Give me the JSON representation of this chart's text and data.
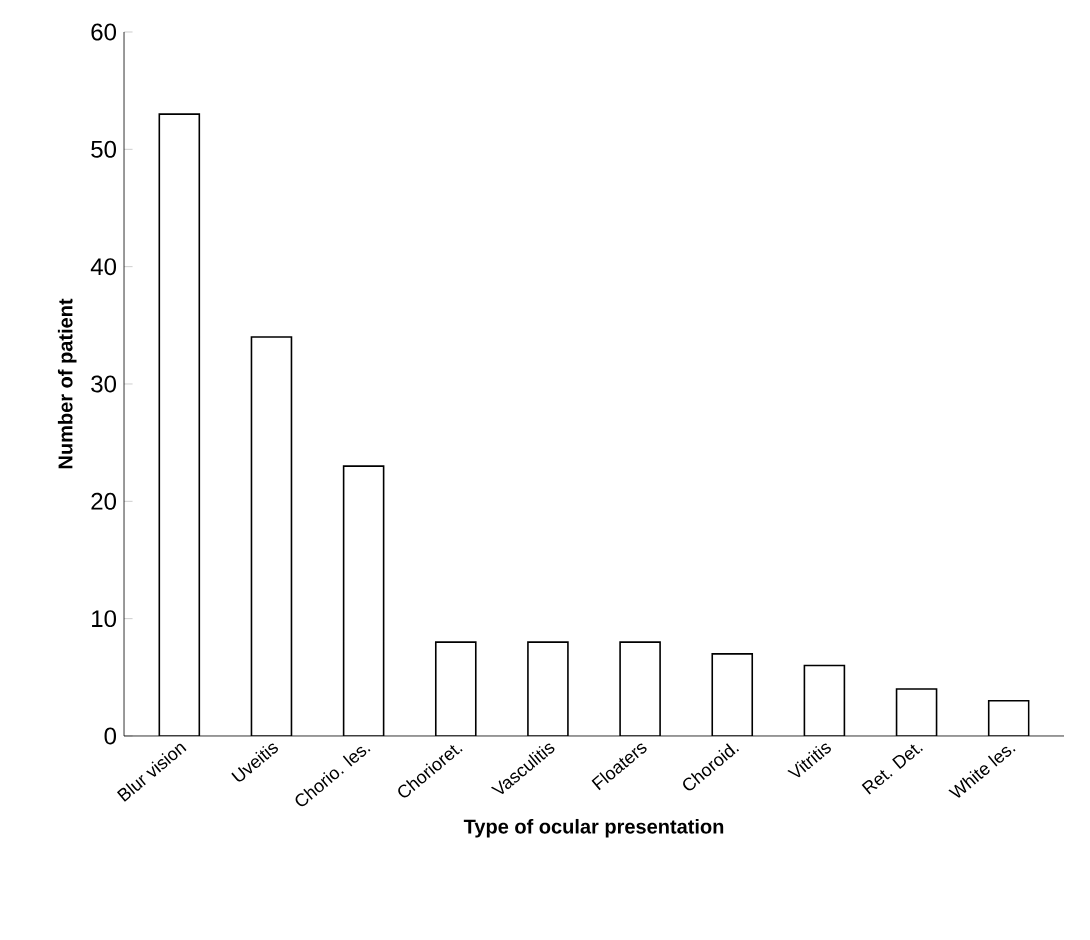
{
  "chart_data": {
    "type": "bar",
    "xlabel": "Type of ocular presentation",
    "ylabel": "Number of patient",
    "categories": [
      "Blur vision",
      "Uveitis",
      "Chorio. les.",
      "Chorioret.",
      "Vasculitis",
      "Floaters",
      "Choroid.",
      "Vitritis",
      "Ret. Det.",
      "White les."
    ],
    "values": [
      53,
      34,
      23,
      8,
      8,
      8,
      7,
      6,
      4,
      3
    ],
    "color": "#ffffff",
    "ylim": [
      0,
      60
    ],
    "yticks": [
      0,
      10,
      20,
      30,
      40,
      50,
      60
    ],
    "grid": false
  }
}
